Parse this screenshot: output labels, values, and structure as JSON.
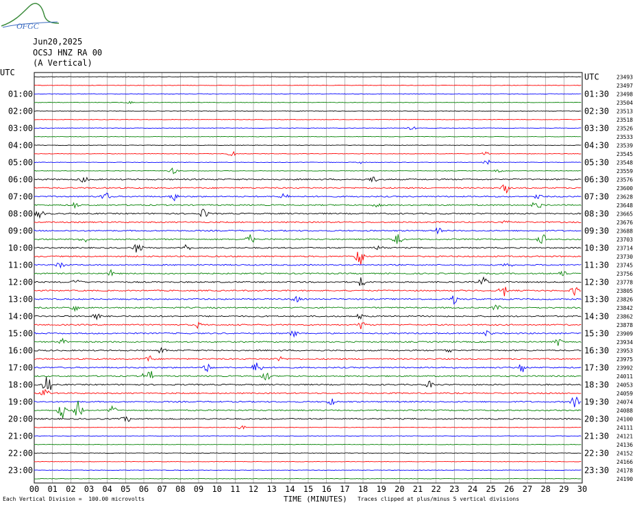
{
  "logo": {
    "text": "OFGC",
    "icon": "ofgc-mountain-logo"
  },
  "header": {
    "date": "Jun20,2025",
    "station": "OCSJ HNZ RA 00",
    "component": "(A Vertical)"
  },
  "colors": {
    "trace_cycle": [
      "#000000",
      "#ff0000",
      "#0000ff",
      "#008000"
    ],
    "grid": "#888888",
    "frame": "#000000"
  },
  "chart_data": {
    "type": "line",
    "title": "",
    "left_axis_label": "UTC",
    "right_axis_label": "UTC",
    "xlabel": "TIME (MINUTES)",
    "xlim": [
      0,
      30
    ],
    "x_ticks": [
      "00",
      "01",
      "02",
      "03",
      "04",
      "05",
      "06",
      "07",
      "08",
      "09",
      "10",
      "11",
      "12",
      "13",
      "14",
      "15",
      "16",
      "17",
      "18",
      "19",
      "20",
      "21",
      "22",
      "23",
      "24",
      "25",
      "26",
      "27",
      "28",
      "29",
      "30"
    ],
    "rows": 48,
    "minutes_per_row": 30,
    "left_time_labels": [
      "01:00",
      "02:00",
      "03:00",
      "04:00",
      "05:00",
      "06:00",
      "07:00",
      "08:00",
      "09:00",
      "10:00",
      "11:00",
      "12:00",
      "13:00",
      "14:00",
      "15:00",
      "16:00",
      "17:00",
      "18:00",
      "19:00",
      "20:00",
      "21:00",
      "22:00",
      "23:00"
    ],
    "right_time_labels": [
      "UTC",
      "01:30",
      "02:30",
      "03:30",
      "04:30",
      "05:30",
      "06:30",
      "07:30",
      "08:30",
      "09:30",
      "10:30",
      "11:30",
      "12:30",
      "13:30",
      "14:30",
      "15:30",
      "16:30",
      "17:30",
      "18:30",
      "19:30",
      "20:30",
      "21:30",
      "22:30",
      "23:30"
    ],
    "right_counts": [
      "23493",
      "23497",
      "23498",
      "23504",
      "23513",
      "23518",
      "23526",
      "23533",
      "23539",
      "23545",
      "23548",
      "23559",
      "23576",
      "23600",
      "23628",
      "23648",
      "23665",
      "23676",
      "23688",
      "23703",
      "23714",
      "23730",
      "23745",
      "23756",
      "23778",
      "23805",
      "23826",
      "23842",
      "23862",
      "23878",
      "23909",
      "23934",
      "23953",
      "23975",
      "23992",
      "24011",
      "24053",
      "24059",
      "24074",
      "24088",
      "24100",
      "24111",
      "24121",
      "24136",
      "24152",
      "24166",
      "24178",
      "24190"
    ],
    "events": [
      {
        "row": 9,
        "minute": 10.8,
        "amp": 5
      },
      {
        "row": 9,
        "minute": 24.7,
        "amp": 3
      },
      {
        "row": 10,
        "minute": 17.9,
        "amp": 3
      },
      {
        "row": 10,
        "minute": 24.8,
        "amp": 4
      },
      {
        "row": 11,
        "minute": 7.6,
        "amp": 6
      },
      {
        "row": 11,
        "minute": 25.4,
        "amp": 3
      },
      {
        "row": 12,
        "minute": 2.7,
        "amp": 6
      },
      {
        "row": 12,
        "minute": 18.6,
        "amp": 6
      },
      {
        "row": 13,
        "minute": 25.8,
        "amp": 8
      },
      {
        "row": 14,
        "minute": 3.9,
        "amp": 7
      },
      {
        "row": 14,
        "minute": 7.7,
        "amp": 6
      },
      {
        "row": 14,
        "minute": 13.7,
        "amp": 5
      },
      {
        "row": 14,
        "minute": 27.6,
        "amp": 4
      },
      {
        "row": 15,
        "minute": 2.2,
        "amp": 5
      },
      {
        "row": 15,
        "minute": 18.8,
        "amp": 6
      },
      {
        "row": 15,
        "minute": 27.5,
        "amp": 8
      },
      {
        "row": 16,
        "minute": 0.3,
        "amp": 9
      },
      {
        "row": 16,
        "minute": 9.3,
        "amp": 10
      },
      {
        "row": 17,
        "minute": 25.8,
        "amp": 3
      },
      {
        "row": 18,
        "minute": 22.1,
        "amp": 6
      },
      {
        "row": 19,
        "minute": 2.7,
        "amp": 7
      },
      {
        "row": 19,
        "minute": 11.8,
        "amp": 10
      },
      {
        "row": 19,
        "minute": 19.9,
        "amp": 14
      },
      {
        "row": 19,
        "minute": 27.8,
        "amp": 9
      },
      {
        "row": 20,
        "minute": 5.7,
        "amp": 10
      },
      {
        "row": 20,
        "minute": 8.3,
        "amp": 8
      },
      {
        "row": 20,
        "minute": 18.9,
        "amp": 5
      },
      {
        "row": 21,
        "minute": 17.8,
        "amp": 18
      },
      {
        "row": 22,
        "minute": 1.4,
        "amp": 6
      },
      {
        "row": 22,
        "minute": 25.9,
        "amp": 5
      },
      {
        "row": 23,
        "minute": 4.2,
        "amp": 6
      },
      {
        "row": 23,
        "minute": 28.9,
        "amp": 8
      },
      {
        "row": 24,
        "minute": 2.3,
        "amp": 8
      },
      {
        "row": 24,
        "minute": 17.9,
        "amp": 8
      },
      {
        "row": 24,
        "minute": 24.6,
        "amp": 7
      },
      {
        "row": 25,
        "minute": 25.7,
        "amp": 10
      },
      {
        "row": 25,
        "minute": 29.6,
        "amp": 7
      },
      {
        "row": 26,
        "minute": 14.3,
        "amp": 7
      },
      {
        "row": 26,
        "minute": 23.0,
        "amp": 7
      },
      {
        "row": 27,
        "minute": 2.2,
        "amp": 6
      },
      {
        "row": 27,
        "minute": 25.3,
        "amp": 6
      },
      {
        "row": 28,
        "minute": 3.4,
        "amp": 8
      },
      {
        "row": 28,
        "minute": 17.8,
        "amp": 5
      },
      {
        "row": 29,
        "minute": 9.0,
        "amp": 5
      },
      {
        "row": 29,
        "minute": 17.9,
        "amp": 7
      },
      {
        "row": 30,
        "minute": 14.2,
        "amp": 6
      },
      {
        "row": 30,
        "minute": 24.8,
        "amp": 5
      },
      {
        "row": 31,
        "minute": 1.6,
        "amp": 6
      },
      {
        "row": 31,
        "minute": 28.7,
        "amp": 6
      },
      {
        "row": 32,
        "minute": 7.0,
        "amp": 5
      },
      {
        "row": 32,
        "minute": 22.7,
        "amp": 5
      },
      {
        "row": 33,
        "minute": 6.3,
        "amp": 6
      },
      {
        "row": 33,
        "minute": 13.4,
        "amp": 4
      },
      {
        "row": 34,
        "minute": 9.5,
        "amp": 8
      },
      {
        "row": 34,
        "minute": 12.2,
        "amp": 14
      },
      {
        "row": 34,
        "minute": 26.7,
        "amp": 9
      },
      {
        "row": 35,
        "minute": 6.2,
        "amp": 18
      },
      {
        "row": 35,
        "minute": 12.7,
        "amp": 8
      },
      {
        "row": 36,
        "minute": 0.7,
        "amp": 16
      },
      {
        "row": 36,
        "minute": 21.7,
        "amp": 8
      },
      {
        "row": 37,
        "minute": 0.6,
        "amp": 8
      },
      {
        "row": 38,
        "minute": 16.3,
        "amp": 6
      },
      {
        "row": 38,
        "minute": 29.6,
        "amp": 10
      },
      {
        "row": 39,
        "minute": 1.5,
        "amp": 14
      },
      {
        "row": 39,
        "minute": 2.4,
        "amp": 14
      },
      {
        "row": 39,
        "minute": 4.3,
        "amp": 7
      },
      {
        "row": 40,
        "minute": 5.0,
        "amp": 8
      },
      {
        "row": 41,
        "minute": 11.3,
        "amp": 5
      },
      {
        "row": 3,
        "minute": 5.2,
        "amp": 3
      },
      {
        "row": 6,
        "minute": 20.7,
        "amp": 3
      }
    ]
  },
  "footer": {
    "left": "Each Vertical Division =  100.00 microvolts",
    "axis_title": "TIME (MINUTES)",
    "right": "Traces clipped at plus/minus 5 vertical divisions"
  }
}
